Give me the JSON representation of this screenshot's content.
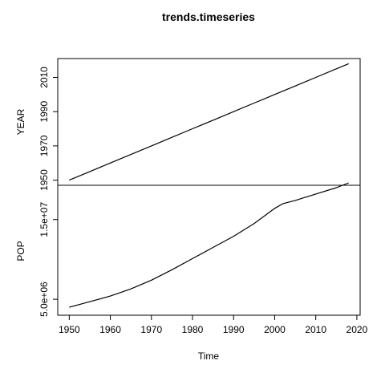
{
  "chart_data": {
    "type": "line",
    "title": "trends.timeseries",
    "xlabel": "Time",
    "x_ticks": [
      "1950",
      "1960",
      "1970",
      "1980",
      "1990",
      "2000",
      "2010",
      "2020"
    ],
    "panels": [
      {
        "ylabel": "YEAR",
        "y_ticks": [
          "1950",
          "1970",
          "1990",
          "2010"
        ],
        "ylim": [
          1947,
          2021
        ],
        "series": [
          {
            "x": [
              1950,
              1955,
              1960,
              1965,
              1970,
              1975,
              1980,
              1985,
              1990,
              1995,
              2000,
              2005,
              2010,
              2015,
              2018
            ],
            "values": [
              1950,
              1955,
              1960,
              1965,
              1970,
              1975,
              1980,
              1985,
              1990,
              1995,
              2000,
              2005,
              2010,
              2015,
              2018
            ]
          }
        ]
      },
      {
        "ylabel": "POP",
        "y_ticks": [
          "5.0e+06",
          "1.5e+07"
        ],
        "ylim": [
          3000000,
          19300000
        ],
        "series": [
          {
            "x": [
              1950,
              1955,
              1960,
              1965,
              1970,
              1975,
              1980,
              1985,
              1990,
              1995,
              2000,
              2002,
              2005,
              2010,
              2015,
              2018
            ],
            "values": [
              4000000,
              4700000,
              5400000,
              6300000,
              7400000,
              8700000,
              10100000,
              11500000,
              12900000,
              14500000,
              16400000,
              17000000,
              17400000,
              18200000,
              19000000,
              19600000
            ]
          }
        ]
      }
    ],
    "xlim": [
      1947.2,
      2020.8
    ],
    "grid": false,
    "legend": "none"
  }
}
